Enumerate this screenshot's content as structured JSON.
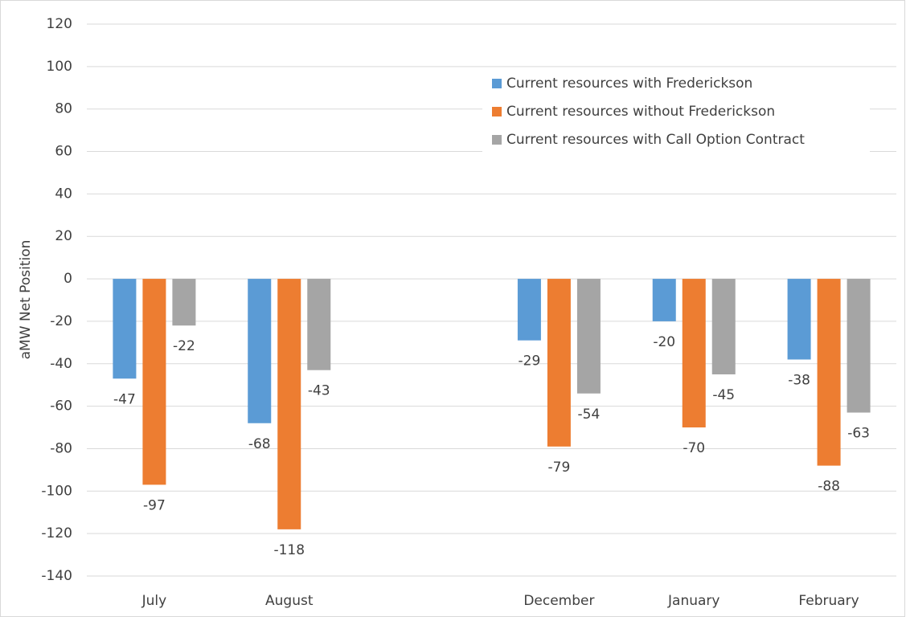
{
  "chart_data": {
    "type": "bar",
    "ylabel": "aMW Net Position",
    "categories": [
      "July",
      "August",
      null,
      "December",
      "January",
      "February"
    ],
    "series": [
      {
        "name": "Current resources with Frederickson",
        "color": "#5b9bd5",
        "values": [
          -47,
          -68,
          null,
          -29,
          -20,
          -38
        ]
      },
      {
        "name": "Current resources without Frederickson",
        "color": "#ed7d31",
        "values": [
          -97,
          -118,
          null,
          -79,
          -70,
          -88
        ]
      },
      {
        "name": "Current resources with Call Option Contract",
        "color": "#a5a5a5",
        "values": [
          -22,
          -43,
          null,
          -54,
          -45,
          -63
        ]
      }
    ],
    "ylim": [
      -140,
      120
    ],
    "yticks": [
      -140,
      -120,
      -100,
      -80,
      -60,
      -40,
      -20,
      0,
      20,
      40,
      60,
      80,
      100,
      120
    ],
    "grid": true,
    "legend": "upper right"
  }
}
